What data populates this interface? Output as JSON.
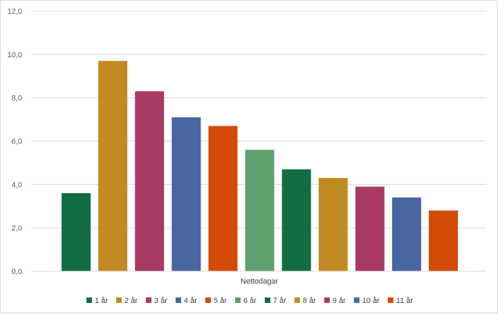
{
  "chart_data": {
    "type": "bar",
    "categories": [
      "Nettodagar"
    ],
    "series": [
      {
        "name": "1 år",
        "values": [
          3.6
        ],
        "color": "#126d42"
      },
      {
        "name": "2 år",
        "values": [
          9.7
        ],
        "color": "#c28b22"
      },
      {
        "name": "3 år",
        "values": [
          8.3
        ],
        "color": "#a83a64"
      },
      {
        "name": "4 år",
        "values": [
          7.1
        ],
        "color": "#4a66a2"
      },
      {
        "name": "5 år",
        "values": [
          6.7
        ],
        "color": "#d54a06"
      },
      {
        "name": "6 år",
        "values": [
          5.6
        ],
        "color": "#5fa06e"
      },
      {
        "name": "7 år",
        "values": [
          4.7
        ],
        "color": "#126d42"
      },
      {
        "name": "8 år",
        "values": [
          4.3
        ],
        "color": "#c28b22"
      },
      {
        "name": "9 år",
        "values": [
          3.9
        ],
        "color": "#a83a64"
      },
      {
        "name": "10 år",
        "values": [
          3.4
        ],
        "color": "#4a66a2"
      },
      {
        "name": "11 år",
        "values": [
          2.8
        ],
        "color": "#d54a06"
      }
    ],
    "ylim": [
      0,
      12
    ],
    "yticks": [
      "0,0",
      "2,0",
      "4,0",
      "6,0",
      "8,0",
      "10,0",
      "12,0"
    ],
    "ytick_values": [
      0,
      2,
      4,
      6,
      8,
      10,
      12
    ],
    "grid": true,
    "legend_position": "bottom",
    "gridline_color": "#d9d9d9"
  }
}
